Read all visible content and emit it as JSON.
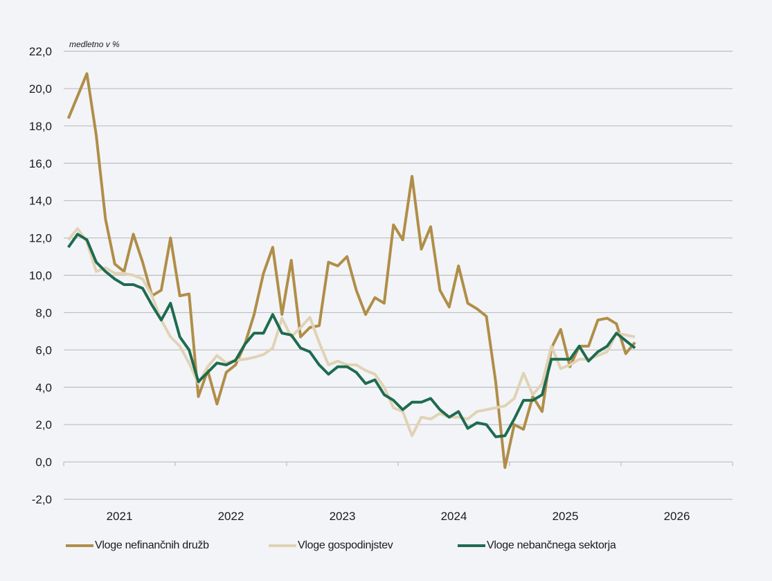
{
  "chart_data": {
    "type": "line",
    "title": "",
    "unit_label": "medletno v %",
    "xlabel": "",
    "ylabel": "medletno v %",
    "ylim": [
      -2,
      22
    ],
    "yticks": [
      -2,
      0,
      2,
      4,
      6,
      8,
      10,
      12,
      14,
      16,
      18,
      20,
      22
    ],
    "ytick_labels": [
      "-2,0",
      "0,0",
      "2,0",
      "4,0",
      "6,0",
      "8,0",
      "10,0",
      "12,0",
      "14,0",
      "16,0",
      "18,0",
      "20,0",
      "22,0"
    ],
    "x_categories": [
      "2021",
      "2022",
      "2023",
      "2024",
      "2025",
      "2026"
    ],
    "x_frequency": "monthly",
    "x_start": "2021-01",
    "grid": true,
    "legend_position": "bottom",
    "series": [
      {
        "name": "Vloge nefinančnih družb",
        "color": "#B08E48",
        "values": [
          18.4,
          19.6,
          20.8,
          17.5,
          13.0,
          10.6,
          10.2,
          12.2,
          10.7,
          8.9,
          9.2,
          12.0,
          8.9,
          9.0,
          3.5,
          4.9,
          3.1,
          4.8,
          5.2,
          6.3,
          7.9,
          10.1,
          11.5,
          7.9,
          10.8,
          6.7,
          7.2,
          7.3,
          10.7,
          10.5,
          11.0,
          9.2,
          7.9,
          8.8,
          8.5,
          12.7,
          11.9,
          15.3,
          11.4,
          12.6,
          9.2,
          8.3,
          10.5,
          8.5,
          8.2,
          7.8,
          4.3,
          -0.3,
          2.0,
          1.75,
          3.5,
          2.7,
          6.1,
          7.1,
          5.1,
          6.2,
          6.2,
          7.6,
          7.7,
          7.4,
          5.8,
          6.4
        ]
      },
      {
        "name": "Vloge gospodinjstev",
        "color": "#E0D3B5",
        "values": [
          11.9,
          12.5,
          11.8,
          10.2,
          10.4,
          10.1,
          10.1,
          10.0,
          9.8,
          8.9,
          7.6,
          6.7,
          6.2,
          5.3,
          4.2,
          5.1,
          5.7,
          5.3,
          5.45,
          5.5,
          5.6,
          5.75,
          6.1,
          7.7,
          6.7,
          7.2,
          7.75,
          6.4,
          5.2,
          5.4,
          5.2,
          5.2,
          4.9,
          4.7,
          4.0,
          2.9,
          2.7,
          1.4,
          2.4,
          2.3,
          2.6,
          2.4,
          2.4,
          2.3,
          2.7,
          2.8,
          2.9,
          3.0,
          3.4,
          4.75,
          3.6,
          4.2,
          6.2,
          5.0,
          5.2,
          5.5,
          5.5,
          5.7,
          5.9,
          6.9,
          6.8,
          6.7
        ]
      },
      {
        "name": "Vloge nebančnega sektorja",
        "color": "#1E6B4F",
        "values": [
          11.5,
          12.2,
          11.9,
          10.7,
          10.2,
          9.8,
          9.5,
          9.5,
          9.3,
          8.4,
          7.6,
          8.5,
          6.7,
          6.0,
          4.3,
          4.8,
          5.3,
          5.2,
          5.45,
          6.3,
          6.9,
          6.9,
          7.9,
          6.9,
          6.8,
          6.1,
          5.9,
          5.2,
          4.7,
          5.1,
          5.1,
          4.8,
          4.2,
          4.4,
          3.6,
          3.3,
          2.8,
          3.2,
          3.2,
          3.4,
          2.8,
          2.4,
          2.7,
          1.8,
          2.1,
          2.0,
          1.35,
          1.4,
          2.3,
          3.3,
          3.3,
          3.6,
          5.5,
          5.5,
          5.5,
          6.2,
          5.4,
          5.9,
          6.2,
          6.9,
          6.5,
          6.1
        ]
      }
    ]
  }
}
